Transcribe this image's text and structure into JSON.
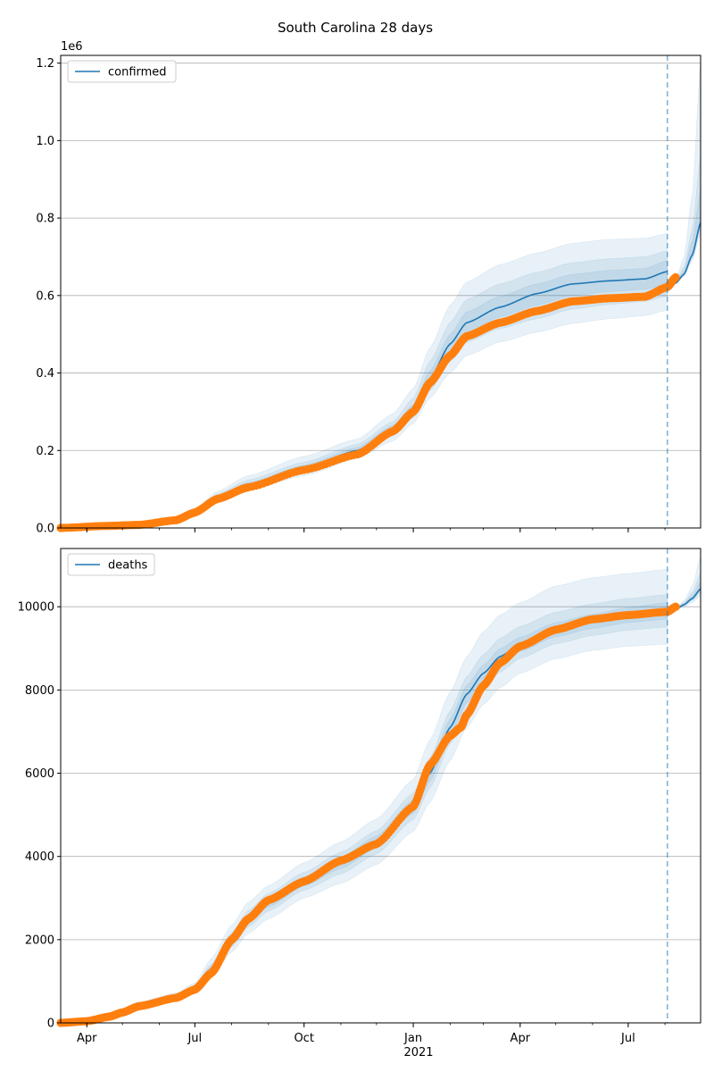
{
  "chart_data": {
    "title": "South Carolina 28 days",
    "type": "line",
    "x_axis": {
      "type": "date",
      "range": [
        "2020-03-10",
        "2021-08-31"
      ],
      "tick_labels": [
        "Apr",
        "Jul",
        "Oct",
        "Jan",
        "Apr",
        "Jul"
      ],
      "tick_dates": [
        "2020-04-01",
        "2020-07-01",
        "2020-10-01",
        "2021-01-01",
        "2021-04-01",
        "2021-07-01"
      ],
      "year_label": "2021"
    },
    "forecast_start": "2021-08-03",
    "band_color": "#1f77b4",
    "line_color": "#1f77b4",
    "observed_color": "#ff7f0e",
    "panels": [
      {
        "legend": "confirmed",
        "legend_position": "upper-left",
        "grid_y": true,
        "ylim": [
          0,
          1220000
        ],
        "y_ticks": [
          0,
          200000,
          400000,
          600000,
          800000,
          1000000,
          1200000
        ],
        "y_tick_labels": [
          "0.0",
          "0.2",
          "0.4",
          "0.6",
          "0.8",
          "1.0",
          "1.2"
        ],
        "y_offset_label": "1e6",
        "model": {
          "x": [
            "2020-03-10",
            "2020-05-15",
            "2020-06-15",
            "2020-07-01",
            "2020-07-20",
            "2020-08-15",
            "2020-10-01",
            "2020-11-15",
            "2020-12-15",
            "2021-01-01",
            "2021-01-15",
            "2021-02-01",
            "2021-02-15",
            "2021-03-15",
            "2021-04-15",
            "2021-05-15",
            "2021-06-15",
            "2021-07-15",
            "2021-08-03"
          ],
          "median": [
            0,
            8000,
            22000,
            42000,
            80000,
            112000,
            155000,
            200000,
            255000,
            305000,
            385000,
            475000,
            530000,
            570000,
            605000,
            630000,
            638000,
            643000,
            662000
          ],
          "bands": [
            {
              "lower": [
                0,
                7000,
                19000,
                37000,
                70000,
                98000,
                135000,
                180000,
                225000,
                270000,
                335000,
                400000,
                445000,
                480000,
                505000,
                528000,
                540000,
                548000,
                562000
              ],
              "upper": [
                0,
                9000,
                25000,
                48000,
                95000,
                135000,
                185000,
                230000,
                295000,
                360000,
                465000,
                575000,
                635000,
                680000,
                710000,
                735000,
                745000,
                748000,
                760000
              ]
            },
            {
              "lower": [
                0,
                7500,
                20500,
                39500,
                75000,
                104000,
                144000,
                190000,
                238000,
                285000,
                355000,
                430000,
                480000,
                515000,
                540000,
                565000,
                577000,
                585000,
                598000
              ],
              "upper": [
                0,
                8600,
                23500,
                45000,
                88000,
                124000,
                170000,
                216000,
                275000,
                335000,
                430000,
                530000,
                590000,
                630000,
                660000,
                685000,
                695000,
                700000,
                715000
              ]
            },
            {
              "lower": [
                0,
                7800,
                21300,
                40800,
                77500,
                108000,
                150000,
                195000,
                247000,
                295000,
                370000,
                452000,
                505000,
                545000,
                575000,
                600000,
                610000,
                616000,
                630000
              ],
              "upper": [
                0,
                8300,
                22800,
                43500,
                84000,
                117000,
                162000,
                208000,
                265000,
                318000,
                405000,
                500000,
                558000,
                598000,
                630000,
                655000,
                665000,
                670000,
                690000
              ]
            }
          ]
        },
        "forecast": {
          "x": [
            "2021-08-03",
            "2021-08-10",
            "2021-08-17",
            "2021-08-24",
            "2021-08-31"
          ],
          "median": [
            622000,
            632000,
            655000,
            705000,
            788000
          ],
          "bands": [
            {
              "lower": [
                622000,
                630000,
                650000,
                690000,
                760000
              ],
              "upper": [
                622000,
                640000,
                700000,
                860000,
                1200000
              ]
            },
            {
              "lower": [
                622000,
                631000,
                652000,
                697000,
                772000
              ],
              "upper": [
                622000,
                636000,
                675000,
                770000,
                960000
              ]
            },
            {
              "lower": [
                622000,
                631500,
                653500,
                701000,
                780000
              ],
              "upper": [
                622000,
                634000,
                665000,
                740000,
                870000
              ]
            }
          ]
        },
        "observed": {
          "x": [
            "2020-03-10",
            "2020-04-15",
            "2020-05-15",
            "2020-06-15",
            "2020-07-01",
            "2020-07-20",
            "2020-08-15",
            "2020-10-01",
            "2020-11-15",
            "2020-12-15",
            "2021-01-01",
            "2021-01-15",
            "2021-02-01",
            "2021-02-15",
            "2021-03-15",
            "2021-04-15",
            "2021-05-15",
            "2021-06-15",
            "2021-07-15",
            "2021-08-03",
            "2021-08-10"
          ],
          "y": [
            0,
            5000,
            8000,
            20000,
            40000,
            75000,
            105000,
            150000,
            190000,
            250000,
            300000,
            375000,
            445000,
            495000,
            530000,
            560000,
            585000,
            593000,
            597000,
            622000,
            647000
          ]
        }
      },
      {
        "legend": "deaths",
        "legend_position": "upper-left",
        "grid_y": true,
        "ylim": [
          0,
          11400
        ],
        "y_ticks": [
          0,
          2000,
          4000,
          6000,
          8000,
          10000
        ],
        "y_tick_labels": [
          "0",
          "2000",
          "4000",
          "6000",
          "8000",
          "10000"
        ],
        "y_offset_label": "",
        "model": {
          "x": [
            "2020-03-10",
            "2020-04-15",
            "2020-05-15",
            "2020-06-15",
            "2020-07-01",
            "2020-07-15",
            "2020-08-01",
            "2020-08-15",
            "2020-09-01",
            "2020-10-01",
            "2020-11-01",
            "2020-12-01",
            "2021-01-01",
            "2021-01-15",
            "2021-02-01",
            "2021-02-15",
            "2021-03-01",
            "2021-03-15",
            "2021-04-01",
            "2021-05-01",
            "2021-06-01",
            "2021-07-01",
            "2021-08-03"
          ],
          "median": [
            0,
            120,
            450,
            650,
            850,
            1300,
            2000,
            2500,
            2900,
            3400,
            3850,
            4350,
            5200,
            6000,
            7100,
            7900,
            8400,
            8800,
            9100,
            9450,
            9650,
            9800,
            9900
          ],
          "bands": [
            {
              "lower": [
                0,
                100,
                400,
                580,
                750,
                1100,
                1700,
                2150,
                2500,
                3000,
                3350,
                3800,
                4600,
                5300,
                6300,
                7100,
                7650,
                8050,
                8400,
                8750,
                8950,
                9050,
                9100
              ],
              "upper": [
                0,
                140,
                500,
                720,
                960,
                1550,
                2350,
                2900,
                3300,
                3850,
                4350,
                4900,
                5850,
                6800,
                7950,
                8800,
                9400,
                9800,
                10100,
                10500,
                10700,
                10800,
                10900
              ]
            },
            {
              "lower": [
                0,
                110,
                420,
                610,
                795,
                1190,
                1830,
                2310,
                2690,
                3190,
                3580,
                4060,
                4890,
                5640,
                6700,
                7500,
                8030,
                8430,
                8760,
                9110,
                9310,
                9440,
                9510
              ],
              "upper": [
                0,
                130,
                480,
                690,
                905,
                1420,
                2170,
                2700,
                3110,
                3620,
                4100,
                4620,
                5520,
                6380,
                7500,
                8320,
                8850,
                9240,
                9530,
                9870,
                10070,
                10200,
                10290
              ]
            },
            {
              "lower": [
                0,
                115,
                435,
                630,
                820,
                1240,
                1910,
                2400,
                2790,
                3290,
                3710,
                4200,
                5040,
                5810,
                6890,
                7690,
                8210,
                8610,
                8930,
                9280,
                9480,
                9620,
                9700
              ],
              "upper": [
                0,
                125,
                465,
                670,
                880,
                1360,
                2080,
                2600,
                3010,
                3510,
                3980,
                4490,
                5360,
                6180,
                7300,
                8110,
                8600,
                8990,
                9270,
                9620,
                9820,
                9980,
                10100
              ]
            }
          ]
        },
        "forecast": {
          "x": [
            "2021-08-03",
            "2021-08-10",
            "2021-08-17",
            "2021-08-24",
            "2021-08-31"
          ],
          "median": [
            9880,
            9940,
            10050,
            10200,
            10430
          ],
          "bands": [
            {
              "lower": [
                9880,
                9920,
                10000,
                10100,
                10250
              ],
              "upper": [
                9880,
                9960,
                10150,
                10500,
                11200
              ]
            },
            {
              "lower": [
                9880,
                9930,
                10025,
                10150,
                10340
              ],
              "upper": [
                9880,
                9950,
                10100,
                10350,
                10800
              ]
            },
            {
              "lower": [
                9880,
                9935,
                10040,
                10175,
                10390
              ],
              "upper": [
                9880,
                9945,
                10075,
                10275,
                10600
              ]
            }
          ]
        },
        "observed": {
          "x": [
            "2020-03-10",
            "2020-04-01",
            "2020-04-20",
            "2020-05-01",
            "2020-05-15",
            "2020-06-15",
            "2020-07-01",
            "2020-07-15",
            "2020-08-01",
            "2020-08-15",
            "2020-09-01",
            "2020-10-01",
            "2020-11-01",
            "2020-12-01",
            "2021-01-01",
            "2021-01-15",
            "2021-02-01",
            "2021-02-10",
            "2021-02-15",
            "2021-03-01",
            "2021-03-15",
            "2021-04-01",
            "2021-05-01",
            "2021-06-01",
            "2021-07-01",
            "2021-08-03",
            "2021-08-10"
          ],
          "y": [
            0,
            40,
            150,
            250,
            400,
            600,
            800,
            1200,
            2000,
            2500,
            2950,
            3400,
            3900,
            4300,
            5200,
            6200,
            6900,
            7100,
            7400,
            8100,
            8650,
            9050,
            9450,
            9700,
            9800,
            9880,
            10000
          ]
        }
      }
    ]
  }
}
